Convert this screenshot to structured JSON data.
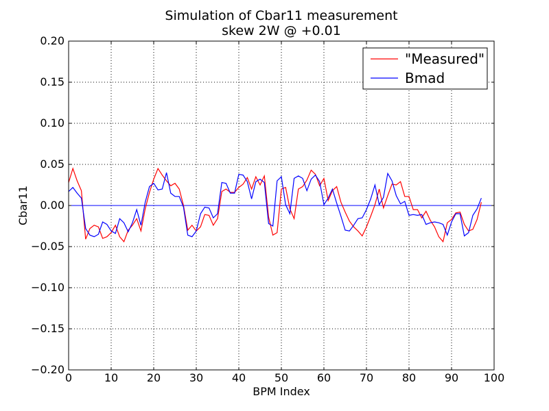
{
  "chart_data": {
    "type": "line",
    "title": "Simulation of Cbar11 measurement",
    "subtitle": "skew 2W @ +0.01",
    "xlabel": "BPM Index",
    "ylabel": "Cbar11",
    "xlim": [
      0,
      100
    ],
    "ylim": [
      -0.2,
      0.2
    ],
    "xticks": [
      "0",
      "10",
      "20",
      "30",
      "40",
      "50",
      "60",
      "70",
      "80",
      "90",
      "100"
    ],
    "yticks": [
      "−0.20",
      "−0.15",
      "−0.10",
      "−0.05",
      "0.00",
      "0.05",
      "0.10",
      "0.15",
      "0.20"
    ],
    "grid": true,
    "legend_position": "top-right",
    "reference_line": {
      "y": 0,
      "color": "#0000ff"
    },
    "x": [
      0,
      1,
      2,
      3,
      4,
      5,
      6,
      7,
      8,
      9,
      10,
      11,
      12,
      13,
      14,
      15,
      16,
      17,
      18,
      19,
      20,
      21,
      22,
      23,
      24,
      25,
      26,
      27,
      28,
      29,
      30,
      31,
      32,
      33,
      34,
      35,
      36,
      37,
      38,
      39,
      40,
      41,
      42,
      43,
      44,
      45,
      46,
      47,
      48,
      49,
      50,
      51,
      52,
      53,
      54,
      55,
      56,
      57,
      58,
      59,
      60,
      61,
      62,
      63,
      64,
      65,
      66,
      67,
      68,
      69,
      70,
      71,
      72,
      73,
      74,
      75,
      76,
      77,
      78,
      79,
      80,
      81,
      82,
      83,
      84,
      85,
      86,
      87,
      88,
      89,
      90,
      91,
      92,
      93,
      94,
      95,
      96,
      97
    ],
    "series": [
      {
        "name": "\"Measured\"",
        "color": "#ff0000",
        "values": [
          0.028,
          0.045,
          0.03,
          0.018,
          -0.041,
          -0.028,
          -0.024,
          -0.026,
          -0.04,
          -0.038,
          -0.033,
          -0.024,
          -0.038,
          -0.044,
          -0.03,
          -0.024,
          -0.016,
          -0.031,
          -0.004,
          0.016,
          0.032,
          0.045,
          0.037,
          0.03,
          0.024,
          0.027,
          0.02,
          0.0,
          -0.03,
          -0.024,
          -0.031,
          -0.026,
          -0.011,
          -0.012,
          -0.024,
          -0.016,
          0.017,
          0.02,
          0.016,
          0.016,
          0.022,
          0.026,
          0.034,
          0.02,
          0.035,
          0.025,
          0.036,
          -0.014,
          -0.036,
          -0.033,
          0.02,
          0.022,
          -0.004,
          -0.016,
          0.02,
          0.023,
          0.031,
          0.043,
          0.038,
          0.024,
          0.033,
          0.006,
          0.018,
          0.023,
          0.004,
          -0.008,
          -0.019,
          -0.026,
          -0.031,
          -0.037,
          -0.026,
          -0.013,
          0.001,
          0.02,
          -0.003,
          0.012,
          0.026,
          0.025,
          0.029,
          0.011,
          0.011,
          -0.005,
          -0.005,
          -0.015,
          -0.007,
          -0.018,
          -0.026,
          -0.038,
          -0.044,
          -0.021,
          -0.017,
          -0.009,
          -0.008,
          -0.023,
          -0.031,
          -0.029,
          -0.017,
          0.004
        ]
      },
      {
        "name": "Bmad",
        "color": "#0000ff",
        "values": [
          0.017,
          0.022,
          0.015,
          0.009,
          -0.028,
          -0.036,
          -0.038,
          -0.035,
          -0.02,
          -0.023,
          -0.031,
          -0.034,
          -0.016,
          -0.021,
          -0.032,
          -0.021,
          -0.005,
          -0.024,
          0.004,
          0.023,
          0.027,
          0.019,
          0.02,
          0.04,
          0.015,
          0.011,
          0.011,
          -0.002,
          -0.036,
          -0.038,
          -0.031,
          -0.01,
          -0.002,
          -0.003,
          -0.015,
          -0.01,
          0.028,
          0.027,
          0.015,
          0.015,
          0.038,
          0.037,
          0.029,
          0.008,
          0.029,
          0.032,
          0.028,
          -0.022,
          -0.025,
          0.03,
          0.035,
          0.001,
          -0.01,
          0.033,
          0.036,
          0.033,
          0.018,
          0.032,
          0.037,
          0.029,
          0.001,
          0.009,
          0.02,
          0.003,
          -0.013,
          -0.03,
          -0.031,
          -0.024,
          -0.016,
          -0.015,
          -0.005,
          0.008,
          0.025,
          0.001,
          0.01,
          0.039,
          0.03,
          0.012,
          0.002,
          0.005,
          -0.012,
          -0.011,
          -0.012,
          -0.011,
          -0.023,
          -0.021,
          -0.02,
          -0.021,
          -0.023,
          -0.036,
          -0.02,
          -0.01,
          -0.01,
          -0.037,
          -0.033,
          -0.012,
          -0.004,
          0.009
        ]
      }
    ]
  }
}
